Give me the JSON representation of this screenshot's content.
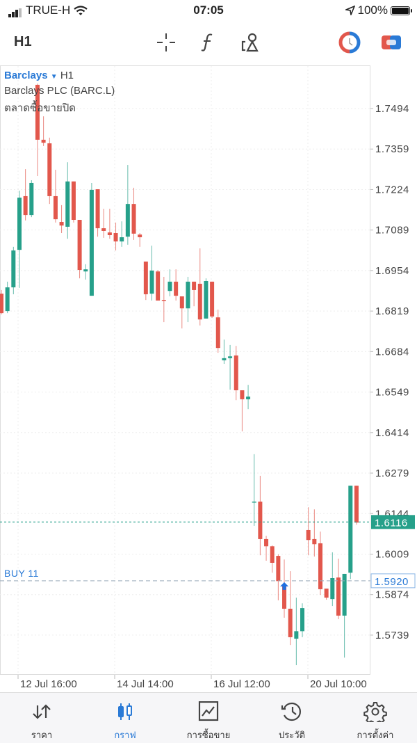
{
  "status_bar": {
    "carrier": "TRUE-H",
    "time": "07:05",
    "battery": "100%"
  },
  "toolbar": {
    "timeframe": "H1",
    "icons": [
      "crosshair-icon",
      "function-icon",
      "objects-icon",
      "trade-timer-icon",
      "one-click-trading-icon"
    ]
  },
  "chart_header": {
    "symbol": "Barclays",
    "timeframe": "H1",
    "description": "Barclays PLC (BARC.L)",
    "market_status": "ตลาดซื้อขายปิด"
  },
  "colors": {
    "bull": "#26a08a",
    "bear": "#e2574c",
    "accent": "#2a7ad6",
    "grid": "#eeeeee"
  },
  "chart_data": {
    "type": "candlestick",
    "ylim": [
      1.563,
      1.758
    ],
    "y_ticks": [
      "1.7494",
      "1.7359",
      "1.7224",
      "1.7089",
      "1.6954",
      "1.6819",
      "1.6684",
      "1.6549",
      "1.6414",
      "1.6279",
      "1.6144",
      "1.6009",
      "1.5874",
      "1.5739"
    ],
    "x_ticks": [
      "12 Jul 16:00",
      "14 Jul 14:00",
      "16 Jul 12:00",
      "20 Jul 10:00"
    ],
    "current_price": {
      "value": 1.6116,
      "label": "1.6116"
    },
    "order_line": {
      "value": 1.592,
      "label": "1.5920",
      "text": "BUY 11"
    },
    "grid": true,
    "candles": [
      [
        1.6877,
        1.6889,
        1.6808,
        1.6812
      ],
      [
        1.6819,
        1.6917,
        1.6812,
        1.6898
      ],
      [
        1.6898,
        1.7033,
        1.6875,
        1.7021
      ],
      [
        1.7023,
        1.722,
        1.6896,
        1.7197
      ],
      [
        1.7202,
        1.7292,
        1.7121,
        1.7139
      ],
      [
        1.7139,
        1.7255,
        1.7132,
        1.7246
      ],
      [
        1.7573,
        1.7577,
        1.7269,
        1.739
      ],
      [
        1.739,
        1.7468,
        1.7369,
        1.738
      ],
      [
        1.7378,
        1.7397,
        1.7176,
        1.7202
      ],
      [
        1.7202,
        1.729,
        1.7114,
        1.7125
      ],
      [
        1.7116,
        1.7172,
        1.7079,
        1.7104
      ],
      [
        1.71,
        1.7315,
        1.706,
        1.7251
      ],
      [
        1.7251,
        1.7251,
        1.7114,
        1.7123
      ],
      [
        1.7123,
        1.7123,
        1.6928,
        1.6956
      ],
      [
        1.6951,
        1.6975,
        1.6924,
        1.6958
      ],
      [
        1.687,
        1.7246,
        1.687,
        1.7223
      ],
      [
        1.7225,
        1.7225,
        1.7067,
        1.7095
      ],
      [
        1.7095,
        1.716,
        1.7063,
        1.7086
      ],
      [
        1.7081,
        1.716,
        1.706,
        1.7072
      ],
      [
        1.7079,
        1.7114,
        1.7021,
        1.7051
      ],
      [
        1.7051,
        1.7118,
        1.7033,
        1.7065
      ],
      [
        1.7067,
        1.7306,
        1.704,
        1.7176
      ],
      [
        1.7176,
        1.723,
        1.7056,
        1.7077
      ],
      [
        1.7074,
        1.7079,
        1.7033,
        1.7065
      ],
      [
        1.6984,
        1.6984,
        1.6856,
        1.6875
      ],
      [
        1.6877,
        1.7037,
        1.6854,
        1.6954
      ],
      [
        1.6951,
        1.6956,
        1.6854,
        1.6854
      ],
      [
        1.6856,
        1.6933,
        1.6782,
        1.6854
      ],
      [
        1.6886,
        1.6958,
        1.6868,
        1.6917
      ],
      [
        1.6917,
        1.6958,
        1.6854,
        1.687
      ],
      [
        1.6868,
        1.6868,
        1.6761,
        1.6828
      ],
      [
        1.6828,
        1.6933,
        1.6782,
        1.6917
      ],
      [
        1.6917,
        1.6917,
        1.6835,
        1.6889
      ],
      [
        1.691,
        1.7028,
        1.6771,
        1.6791
      ],
      [
        1.6794,
        1.6928,
        1.6794,
        1.6919
      ],
      [
        1.6917,
        1.6917,
        1.6796,
        1.6801
      ],
      [
        1.6798,
        1.6824,
        1.668,
        1.6696
      ],
      [
        1.6655,
        1.6724,
        1.6643,
        1.6662
      ],
      [
        1.6662,
        1.6706,
        1.6557,
        1.6668
      ],
      [
        1.6671,
        1.6703,
        1.6522,
        1.6555
      ],
      [
        1.6555,
        1.6555,
        1.6418,
        1.6525
      ],
      [
        1.6525,
        1.6573,
        1.6492,
        1.6534
      ],
      [
        1.6181,
        1.6342,
        1.6103,
        1.6184
      ],
      [
        1.6184,
        1.627,
        1.6005,
        1.6059
      ],
      [
        1.6059,
        1.607,
        1.5987,
        1.6035
      ],
      [
        1.6035,
        1.6038,
        1.5947,
        1.598
      ],
      [
        1.6003,
        1.6008,
        1.5855,
        1.5919
      ],
      [
        1.5908,
        1.5991,
        1.5797,
        1.5827
      ],
      [
        1.5827,
        1.5952,
        1.5706,
        1.5732
      ],
      [
        1.5727,
        1.5864,
        1.5639,
        1.5752
      ],
      [
        1.5752,
        1.5845,
        1.5732,
        1.5829
      ],
      [
        1.6089,
        1.6165,
        1.6005,
        1.6056
      ],
      [
        1.6059,
        1.6158,
        1.6001,
        1.6042
      ],
      [
        1.6045,
        1.6084,
        1.5873,
        1.5892
      ],
      [
        1.5894,
        1.5894,
        1.5857,
        1.5864
      ],
      [
        1.5859,
        1.6015,
        1.5836,
        1.5929
      ],
      [
        1.5931,
        1.5994,
        1.5792,
        1.5804
      ],
      [
        1.5804,
        1.5943,
        1.5664,
        1.5943
      ],
      [
        1.5947,
        1.6237,
        1.5926,
        1.6237
      ],
      [
        1.6237,
        1.6237,
        1.6107,
        1.6114
      ]
    ],
    "candle_fields": [
      "open",
      "high",
      "low",
      "close"
    ],
    "buy_marker_candle": 48
  },
  "nav": {
    "items": [
      {
        "label": "ราคา",
        "icon": "quotes-arrows-icon"
      },
      {
        "label": "กราฟ",
        "icon": "chart-candles-icon",
        "active": true
      },
      {
        "label": "การซื้อขาย",
        "icon": "trade-chart-icon"
      },
      {
        "label": "ประวัติ",
        "icon": "history-icon"
      },
      {
        "label": "การตั้งค่า",
        "icon": "settings-gear-icon"
      }
    ]
  }
}
